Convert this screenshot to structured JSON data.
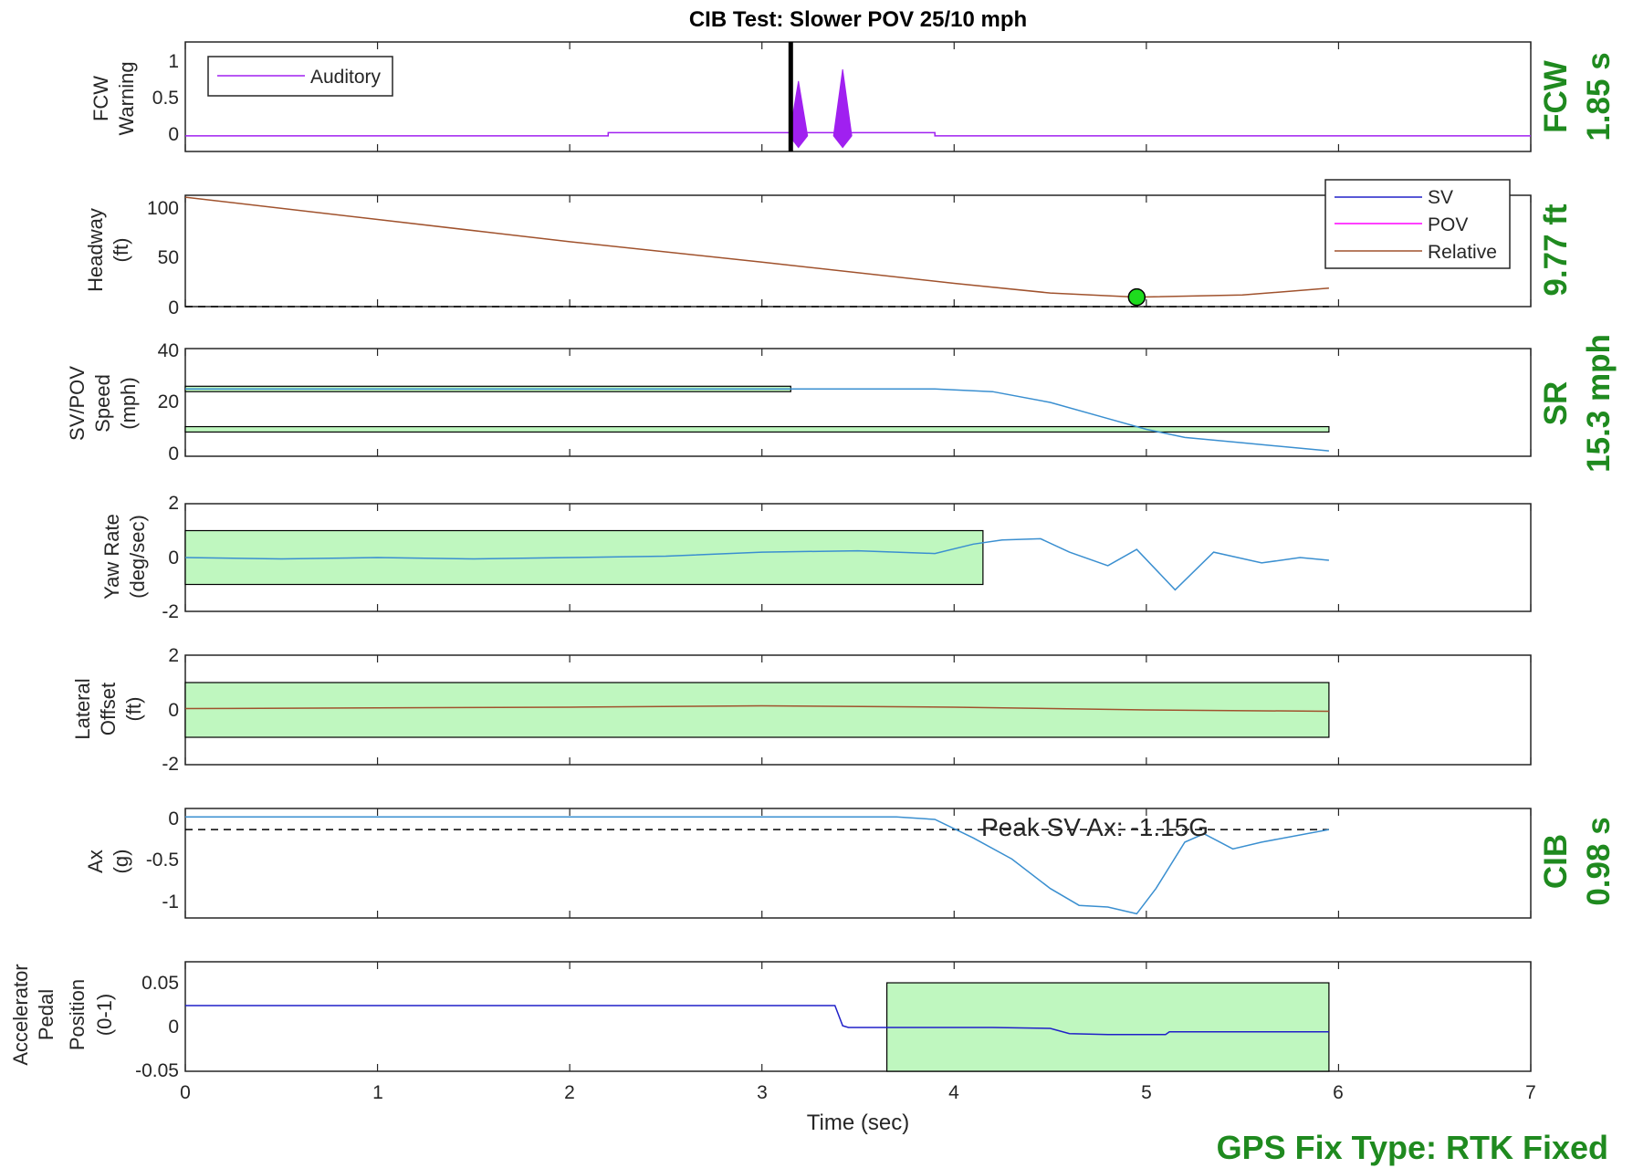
{
  "figure": {
    "title": "CIB Test: Slower POV 25/10 mph",
    "xlabel": "Time (sec)",
    "xlim": [
      0,
      7
    ],
    "xticks": [
      "0",
      "1",
      "2",
      "3",
      "4",
      "5",
      "6",
      "7"
    ],
    "footer": "GPS Fix Type: RTK Fixed",
    "accent_color": "#1f8a1f",
    "band_color": "#bff7bf"
  },
  "panels": {
    "fcw": {
      "ylabel": [
        "FCW",
        "Warning"
      ],
      "yticks": [
        "0",
        "0.5",
        "1"
      ],
      "legend": "Auditory",
      "side_label": [
        "FCW",
        "1.85 s"
      ]
    },
    "headway": {
      "ylabel": [
        "Headway",
        "(ft)"
      ],
      "yticks": [
        "0",
        "50",
        "100"
      ],
      "legend": [
        "SV",
        "POV",
        "Relative"
      ],
      "side_label": [
        "9.77 ft"
      ]
    },
    "speed": {
      "ylabel": [
        "SV/POV",
        "Speed",
        "(mph)"
      ],
      "yticks": [
        "0",
        "20",
        "40"
      ],
      "side_label": [
        "SR",
        "15.3 mph"
      ]
    },
    "yaw": {
      "ylabel": [
        "Yaw Rate",
        "(deg/sec)"
      ],
      "yticks": [
        "-2",
        "0",
        "2"
      ]
    },
    "lateral": {
      "ylabel": [
        "Lateral",
        "Offset",
        "(ft)"
      ],
      "yticks": [
        "-2",
        "0",
        "2"
      ]
    },
    "ax": {
      "ylabel": [
        "Ax",
        "(g)"
      ],
      "yticks": [
        "-1",
        "-0.5",
        "0"
      ],
      "annotation": "Peak SV Ax: -1.15G",
      "side_label": [
        "CIB",
        "0.98 s"
      ]
    },
    "pedal": {
      "ylabel": [
        "Accelerator",
        "Pedal",
        "Position",
        "(0-1)"
      ],
      "yticks": [
        "-0.05",
        "0",
        "0.05"
      ]
    }
  },
  "chart_data": [
    {
      "type": "line",
      "title": "CIB Test: Slower POV 25/10 mph",
      "ylabel": "FCW Warning",
      "xlim": [
        0,
        7
      ],
      "ylim": [
        -0.2,
        1.2
      ],
      "series": [
        {
          "name": "Auditory",
          "color": "#a020f0",
          "x": [
            0,
            2.2,
            2.2,
            3.9,
            3.9,
            7
          ],
          "y": [
            0,
            0,
            0.04,
            0.04,
            0,
            0
          ],
          "bursts": [
            {
              "x": 3.19,
              "peak": 0.7
            },
            {
              "x": 3.42,
              "peak": 0.85
            }
          ]
        }
      ],
      "warning_time": 3.15
    },
    {
      "type": "line",
      "ylabel": "Headway (ft)",
      "xlim": [
        0,
        7
      ],
      "ylim": [
        0,
        115
      ],
      "series": [
        {
          "name": "Relative",
          "color": "#a0522d",
          "x": [
            0,
            1,
            2,
            3,
            4,
            4.5,
            4.95,
            5.5,
            5.95
          ],
          "y": [
            113,
            90,
            67,
            46,
            24,
            14,
            9.8,
            12,
            19
          ]
        }
      ],
      "min_marker": {
        "x": 4.95,
        "y": 9.77
      },
      "zero_line": 0
    },
    {
      "type": "line",
      "ylabel": "SV/POV Speed (mph)",
      "xlim": [
        0,
        7
      ],
      "ylim": [
        0,
        40
      ],
      "series": [
        {
          "name": "SV",
          "color": "#3a8fd0",
          "x": [
            0,
            3.5,
            3.9,
            4.2,
            4.5,
            4.8,
            5.0,
            5.2,
            5.5,
            5.95
          ],
          "y": [
            25,
            25,
            25,
            24,
            20,
            14,
            10,
            7,
            5,
            2
          ]
        }
      ],
      "bands": [
        {
          "x0": 0,
          "x1": 3.15,
          "y0": 24,
          "y1": 26
        },
        {
          "x0": 0,
          "x1": 5.95,
          "y0": 9,
          "y1": 11
        }
      ]
    },
    {
      "type": "line",
      "ylabel": "Yaw Rate (deg/sec)",
      "xlim": [
        0,
        7
      ],
      "ylim": [
        -2,
        2
      ],
      "series": [
        {
          "name": "Yaw Rate",
          "color": "#3a8fd0",
          "x": [
            0,
            0.5,
            1,
            1.5,
            2,
            2.5,
            3,
            3.5,
            3.9,
            4.1,
            4.25,
            4.45,
            4.6,
            4.8,
            4.95,
            5.15,
            5.35,
            5.6,
            5.8,
            5.95
          ],
          "y": [
            0,
            -0.05,
            0,
            -0.05,
            0,
            0.05,
            0.2,
            0.25,
            0.15,
            0.5,
            0.65,
            0.7,
            0.2,
            -0.3,
            0.3,
            -1.2,
            0.2,
            -0.2,
            0,
            -0.1
          ]
        }
      ],
      "bands": [
        {
          "x0": 0,
          "x1": 4.15,
          "y0": -1,
          "y1": 1
        }
      ]
    },
    {
      "type": "line",
      "ylabel": "Lateral Offset (ft)",
      "xlim": [
        0,
        7
      ],
      "ylim": [
        -2,
        2
      ],
      "series": [
        {
          "name": "Lateral Offset",
          "color": "#a0522d",
          "x": [
            0,
            2,
            3,
            4,
            5,
            5.95
          ],
          "y": [
            0.05,
            0.1,
            0.15,
            0.1,
            0,
            -0.05
          ]
        }
      ],
      "bands": [
        {
          "x0": 0,
          "x1": 5.95,
          "y0": -1,
          "y1": 1
        }
      ]
    },
    {
      "type": "line",
      "ylabel": "Ax (g)",
      "xlim": [
        0,
        7
      ],
      "ylim": [
        -1.2,
        0.1
      ],
      "series": [
        {
          "name": "SV Ax",
          "color": "#3a8fd0",
          "x": [
            0,
            3.7,
            3.9,
            4.1,
            4.3,
            4.5,
            4.65,
            4.8,
            4.95,
            5.05,
            5.2,
            5.3,
            5.45,
            5.6,
            5.95
          ],
          "y": [
            0,
            0,
            -0.03,
            -0.25,
            -0.5,
            -0.85,
            -1.05,
            -1.07,
            -1.15,
            -0.85,
            -0.3,
            -0.2,
            -0.38,
            -0.3,
            -0.15
          ]
        }
      ],
      "threshold": -0.15
    },
    {
      "type": "line",
      "ylabel": "Accelerator Pedal Position (0-1)",
      "xlabel": "Time (sec)",
      "xlim": [
        0,
        7
      ],
      "ylim": [
        -0.05,
        0.075
      ],
      "series": [
        {
          "name": "Pedal",
          "color": "#2020c8",
          "x": [
            0,
            3.38,
            3.42,
            3.45,
            3.55,
            4.2,
            4.5,
            4.6,
            4.8,
            5.1,
            5.12,
            5.2,
            5.95
          ],
          "y": [
            0.025,
            0.025,
            0.002,
            0.0,
            0.0,
            0.0,
            -0.001,
            -0.007,
            -0.008,
            -0.008,
            -0.005,
            -0.005,
            -0.005
          ]
        }
      ],
      "bands": [
        {
          "x0": 3.65,
          "x1": 5.95,
          "y0": -0.05,
          "y1": 0.051
        }
      ]
    }
  ]
}
